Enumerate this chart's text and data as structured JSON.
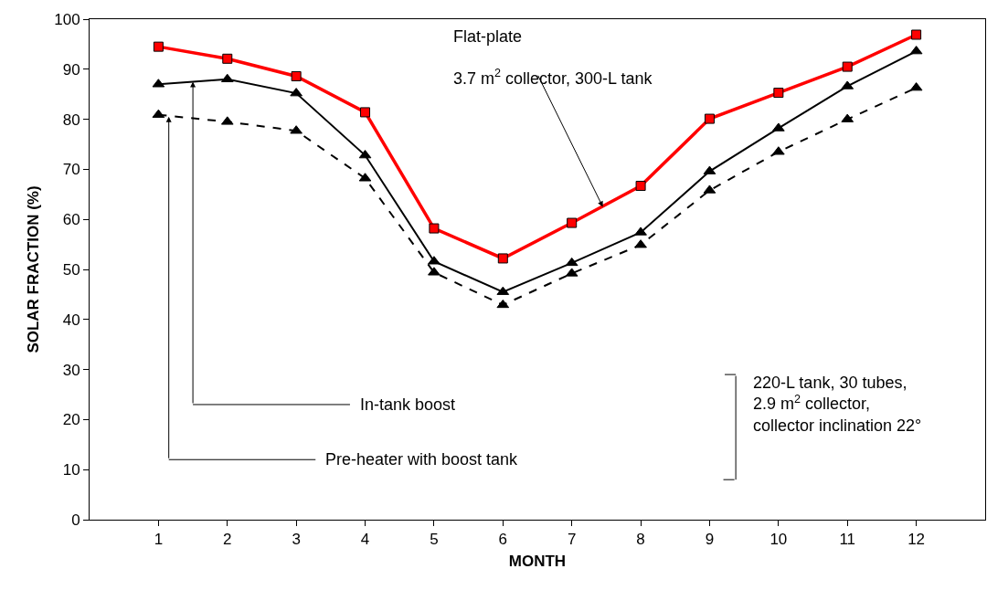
{
  "chart_data": {
    "type": "line",
    "xlabel": "MONTH",
    "ylabel": "SOLAR FRACTION (%)",
    "x": [
      1,
      2,
      3,
      4,
      5,
      6,
      7,
      8,
      9,
      10,
      11,
      12
    ],
    "xlim": [
      0,
      13
    ],
    "xticks": [
      1,
      2,
      3,
      4,
      5,
      6,
      7,
      8,
      9,
      10,
      11,
      12
    ],
    "ylim": [
      0,
      100
    ],
    "yticks": [
      0,
      10,
      20,
      30,
      40,
      50,
      60,
      70,
      80,
      90,
      100
    ],
    "series": [
      {
        "color": "#ff0000",
        "marker": "square",
        "line_style": "solid",
        "values": [
          94.5,
          92.1,
          88.6,
          81.4,
          58.2,
          52.2,
          59.3,
          66.7,
          80.1,
          85.3,
          90.5,
          96.9
        ]
      },
      {
        "color": "#000000",
        "marker": "triangle",
        "line_style": "solid",
        "values": [
          87.0,
          88.0,
          85.2,
          72.8,
          51.6,
          45.5,
          51.3,
          57.4,
          69.6,
          78.2,
          86.6,
          93.6
        ]
      },
      {
        "color": "#000000",
        "marker": "triangle",
        "line_style": "dashed",
        "values": [
          80.9,
          79.5,
          77.7,
          68.2,
          49.4,
          42.9,
          49.2,
          54.9,
          65.8,
          73.5,
          80.0,
          86.3
        ]
      }
    ],
    "annotations": [
      "Flat-plate",
      {
        "text": "3.7 m$^{2}$ collector, 300-L tank",
        "x": 7.45,
        "y": 62.5
      },
      "In-tank boost",
      "Pre-heater with boost tank",
      "220-L tank, 30 tubes,\n2.9 m$^{2}$ collector,\ncollector inclination 22°"
    ]
  }
}
